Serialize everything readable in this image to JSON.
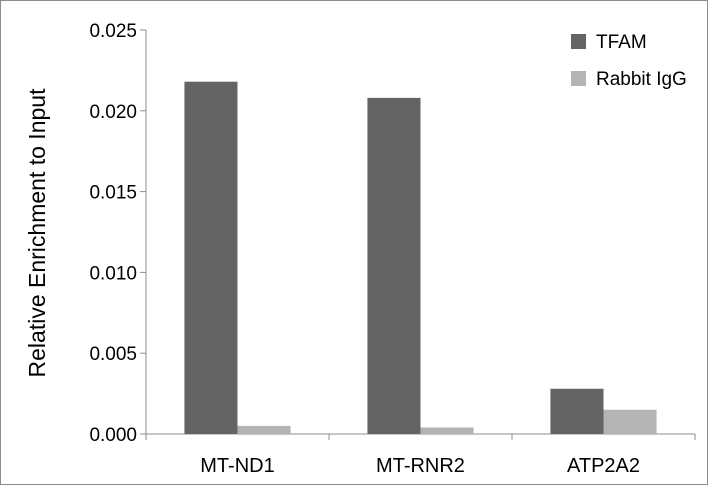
{
  "chart_data": {
    "type": "bar",
    "title": "",
    "xlabel": "",
    "ylabel": "Relative Enrichment to Input",
    "categories": [
      "MT-ND1",
      "MT-RNR2",
      "ATP2A2"
    ],
    "series": [
      {
        "name": "TFAM",
        "values": [
          0.0218,
          0.0208,
          0.0028
        ],
        "color": "#646464"
      },
      {
        "name": "Rabbit IgG",
        "values": [
          0.0005,
          0.0004,
          0.0015
        ],
        "color": "#b4b4b4"
      }
    ],
    "ylim": [
      0,
      0.025
    ],
    "yticks": [
      "0.000",
      "0.005",
      "0.010",
      "0.015",
      "0.020",
      "0.025"
    ],
    "grid": false,
    "legend_position": "top-right"
  }
}
